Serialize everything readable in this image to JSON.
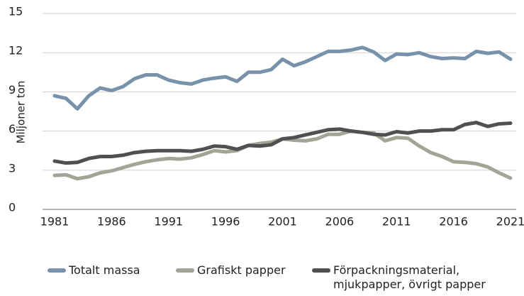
{
  "chart_data": {
    "type": "line",
    "y_label": "Miljoner ton",
    "x": [
      1981,
      1982,
      1983,
      1984,
      1985,
      1986,
      1987,
      1988,
      1989,
      1990,
      1991,
      1992,
      1993,
      1994,
      1995,
      1996,
      1997,
      1998,
      1999,
      2000,
      2001,
      2002,
      2003,
      2004,
      2005,
      2006,
      2007,
      2008,
      2009,
      2010,
      2011,
      2012,
      2013,
      2014,
      2015,
      2016,
      2017,
      2018,
      2019,
      2020,
      2021
    ],
    "xlim": [
      1981,
      2021
    ],
    "xticks": [
      1981,
      1986,
      1991,
      1996,
      2001,
      2006,
      2011,
      2016,
      2021
    ],
    "ylim": [
      0,
      15
    ],
    "yticks": [
      0,
      3,
      6,
      9,
      12,
      15
    ],
    "grid": true,
    "series": [
      {
        "name": "Totalt massa",
        "color": "#7892ab",
        "values": [
          8.7,
          8.5,
          7.7,
          8.7,
          9.3,
          9.1,
          9.4,
          10.0,
          10.3,
          10.3,
          9.9,
          9.7,
          9.6,
          9.9,
          10.05,
          10.15,
          9.8,
          10.5,
          10.5,
          10.7,
          11.5,
          11.0,
          11.3,
          11.7,
          12.1,
          12.1,
          12.2,
          12.4,
          12.05,
          11.4,
          11.9,
          11.85,
          12.0,
          11.7,
          11.55,
          11.6,
          11.55,
          12.1,
          11.95,
          12.05,
          11.5
        ]
      },
      {
        "name": "Grafiskt papper",
        "color": "#a3a396",
        "values": [
          2.6,
          2.65,
          2.35,
          2.5,
          2.8,
          2.95,
          3.2,
          3.45,
          3.65,
          3.8,
          3.9,
          3.85,
          3.95,
          4.2,
          4.5,
          4.4,
          4.5,
          4.9,
          5.05,
          5.15,
          5.4,
          5.3,
          5.25,
          5.4,
          5.75,
          5.75,
          6.0,
          5.9,
          5.85,
          5.25,
          5.5,
          5.45,
          4.85,
          4.35,
          4.05,
          3.65,
          3.6,
          3.5,
          3.25,
          2.8,
          2.4
        ]
      },
      {
        "name": "Förpackningsmaterial, mjukpapper, övrigt papper",
        "color": "#505050",
        "values": [
          3.7,
          3.55,
          3.6,
          3.9,
          4.05,
          4.05,
          4.15,
          4.35,
          4.45,
          4.5,
          4.5,
          4.5,
          4.45,
          4.6,
          4.85,
          4.8,
          4.6,
          4.9,
          4.85,
          4.95,
          5.4,
          5.5,
          5.7,
          5.9,
          6.1,
          6.15,
          6.0,
          5.9,
          5.75,
          5.7,
          5.95,
          5.85,
          6.0,
          6.0,
          6.1,
          6.1,
          6.5,
          6.65,
          6.35,
          6.55,
          6.6
        ]
      }
    ]
  }
}
